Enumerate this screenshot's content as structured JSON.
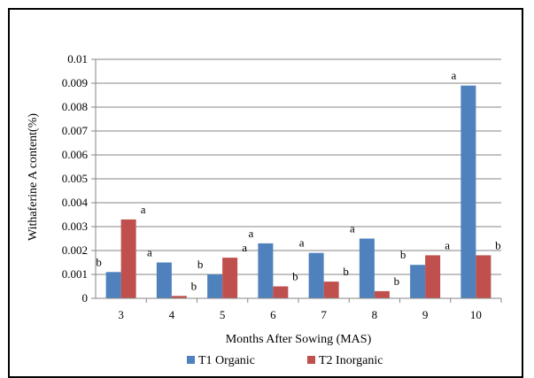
{
  "chart_data": {
    "type": "bar",
    "xlabel": "Months After Sowing (MAS)",
    "ylabel": "Withaferine A content(%)",
    "ylim": [
      0,
      0.01
    ],
    "yticks": [
      "0",
      "0.001",
      "0.002",
      "0.003",
      "0.004",
      "0.005",
      "0.006",
      "0.007",
      "0.008",
      "0.009",
      "0.01"
    ],
    "grid": true,
    "legend_position": "bottom",
    "categories": [
      "3",
      "4",
      "5",
      "6",
      "7",
      "8",
      "9",
      "10"
    ],
    "series": [
      {
        "name": "T1 Organic",
        "color": "#4F81BD",
        "values": [
          0.0011,
          0.0015,
          0.001,
          0.0023,
          0.0019,
          0.0025,
          0.0014,
          0.0089
        ],
        "labels": [
          "b",
          "a",
          "b",
          "a",
          "a",
          "a",
          "b",
          "a"
        ]
      },
      {
        "name": "T2 Inorganic",
        "color": "#C0504D",
        "values": [
          0.0033,
          0.0001,
          0.0017,
          0.0005,
          0.0007,
          0.0003,
          0.0018,
          0.0018
        ],
        "labels": [
          "a",
          "b",
          "a",
          "b",
          "b",
          "b",
          "a",
          "b"
        ]
      }
    ]
  }
}
